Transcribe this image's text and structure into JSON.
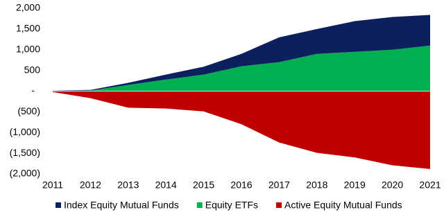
{
  "chart_data": {
    "type": "area",
    "x": [
      2011,
      2012,
      2013,
      2014,
      2015,
      2016,
      2017,
      2018,
      2019,
      2020,
      2021
    ],
    "xlim": [
      2011,
      2021
    ],
    "xticks": [
      2011,
      2012,
      2013,
      2014,
      2015,
      2016,
      2017,
      2018,
      2019,
      2020,
      2021
    ],
    "ylim": [
      -2000,
      2000
    ],
    "yticks": [
      {
        "value": 2000,
        "label": "2,000"
      },
      {
        "value": 1500,
        "label": "1,500"
      },
      {
        "value": 1000,
        "label": "1,000"
      },
      500,
      {
        "value": 0,
        "label": "-"
      },
      {
        "value": -500,
        "label": "(500)"
      },
      {
        "value": -1000,
        "label": "(1,000)"
      },
      {
        "value": -1500,
        "label": "(1,500)"
      },
      {
        "value": -2000,
        "label": "(2,000)"
      }
    ],
    "stacked": true,
    "legend": "bottom",
    "series": [
      {
        "name": "Index Equity Mutual Funds",
        "color": "#0c1f5e",
        "values": [
          5,
          15,
          50,
          120,
          190,
          300,
          600,
          600,
          740,
          790,
          740
        ]
      },
      {
        "name": "Equity ETFs",
        "color": "#00b050",
        "values": [
          5,
          15,
          150,
          280,
          400,
          600,
          700,
          900,
          950,
          1000,
          1100
        ]
      },
      {
        "name": "Active Equity Mutual Funds",
        "color": "#c00000",
        "values": [
          -20,
          -170,
          -400,
          -420,
          -490,
          -800,
          -1240,
          -1490,
          -1600,
          -1790,
          -1880
        ]
      }
    ]
  }
}
